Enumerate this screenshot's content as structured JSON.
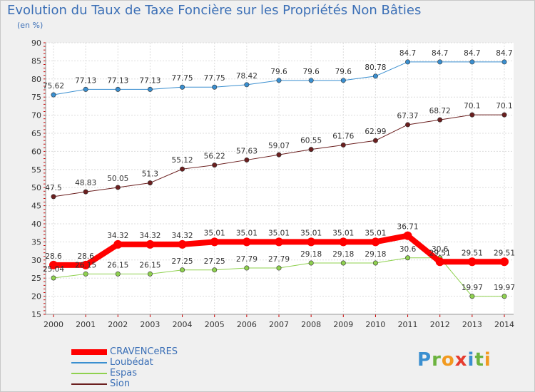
{
  "chart_data": {
    "type": "line",
    "title": "Evolution du Taux de Taxe Foncière sur les Propriétés Non Bâties",
    "ylabel": "(en %)",
    "xlabel": "",
    "ylim": [
      15,
      90
    ],
    "yticks": [
      15,
      20,
      25,
      30,
      35,
      40,
      45,
      50,
      55,
      60,
      65,
      70,
      75,
      80,
      85,
      90
    ],
    "categories": [
      "2000",
      "2001",
      "2002",
      "2003",
      "2004",
      "2005",
      "2006",
      "2007",
      "2008",
      "2009",
      "2010",
      "2011",
      "2012",
      "2013",
      "2014"
    ],
    "grid": true,
    "series": [
      {
        "name": "CRAVENCeRES",
        "color": "#ff0000",
        "values": [
          28.6,
          28.6,
          34.32,
          34.32,
          34.32,
          35.01,
          35.01,
          35.01,
          35.01,
          35.01,
          35.01,
          36.71,
          29.51,
          29.51,
          29.51
        ],
        "labels": [
          "28.6",
          "28.6",
          "34.32",
          "34.32",
          "34.32",
          "35.01",
          "35.01",
          "35.01",
          "35.01",
          "35.01",
          "35.01",
          "36.71",
          "29.51",
          "29.51",
          "29.51"
        ]
      },
      {
        "name": "Loubédat",
        "color": "#3a8fd0",
        "values": [
          75.62,
          77.13,
          77.13,
          77.13,
          77.75,
          77.75,
          78.42,
          79.6,
          79.6,
          79.6,
          80.78,
          84.7,
          84.7,
          84.7,
          84.7
        ],
        "labels": [
          "75.62",
          "77.13",
          "77.13",
          "77.13",
          "77.75",
          "77.75",
          "78.42",
          "79.6",
          "79.6",
          "79.6",
          "80.78",
          "84.7",
          "84.7",
          "84.7",
          "84.7"
        ]
      },
      {
        "name": "Espas",
        "color": "#8fd14f",
        "values": [
          25.04,
          26.15,
          26.15,
          26.15,
          27.25,
          27.25,
          27.79,
          27.79,
          29.18,
          29.18,
          29.18,
          30.6,
          30.6,
          19.97,
          19.97
        ],
        "labels": [
          "25.04",
          "26.15",
          "26.15",
          "26.15",
          "27.25",
          "27.25",
          "27.79",
          "27.79",
          "29.18",
          "29.18",
          "29.18",
          "30.6",
          "30.6",
          "19.97",
          "19.97"
        ]
      },
      {
        "name": "Sion",
        "color": "#6b1f1f",
        "values": [
          47.5,
          48.83,
          50.05,
          51.3,
          55.12,
          56.22,
          57.63,
          59.07,
          60.55,
          61.76,
          62.99,
          67.37,
          68.72,
          70.1,
          70.1
        ],
        "labels": [
          "47.5",
          "48.83",
          "50.05",
          "51.3",
          "55.12",
          "56.22",
          "57.63",
          "59.07",
          "60.55",
          "61.76",
          "62.99",
          "67.37",
          "68.72",
          "70.1",
          "70.1"
        ]
      }
    ]
  },
  "logo": [
    "P",
    "r",
    "o",
    "x",
    "i",
    "t",
    "i"
  ]
}
